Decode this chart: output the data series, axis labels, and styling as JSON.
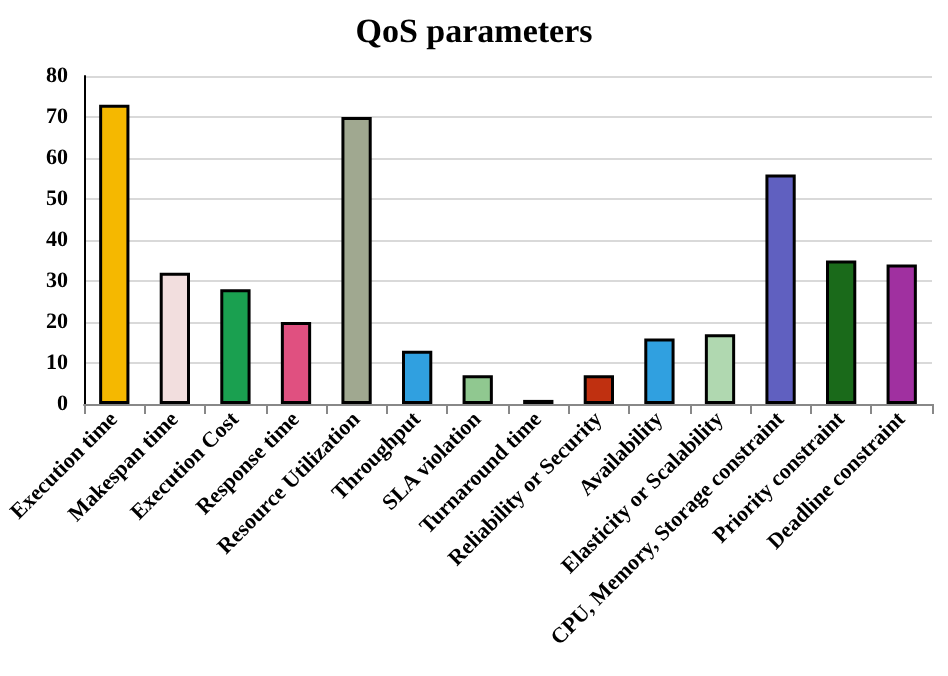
{
  "chart_data": {
    "type": "bar",
    "title": "QoS parameters",
    "categories": [
      "Execution time",
      "Makespan time",
      "Execution Cost",
      "Response time",
      "Resource Utilization",
      "Throughput",
      "SLA violation",
      "Turnaround time",
      "Reliability or Security",
      "Availability",
      "Elasticity or Scalability",
      "CPU, Memory, Storage constraint",
      "Priority constraint",
      "Deadline constraint"
    ],
    "values": [
      73,
      32,
      28,
      20,
      70,
      13,
      7,
      1,
      7,
      16,
      17,
      56,
      35,
      34
    ],
    "colors": [
      "#f5b800",
      "#f2dede",
      "#1aa050",
      "#e05080",
      "#a0a890",
      "#30a0e0",
      "#90c890",
      "#000000",
      "#c03010",
      "#30a0e0",
      "#b0d8b0",
      "#6060c0",
      "#1a6a1a",
      "#a030a0"
    ],
    "ylim": [
      0,
      80
    ],
    "yticks": [
      0,
      10,
      20,
      30,
      40,
      50,
      60,
      70,
      80
    ],
    "grid": "y"
  }
}
